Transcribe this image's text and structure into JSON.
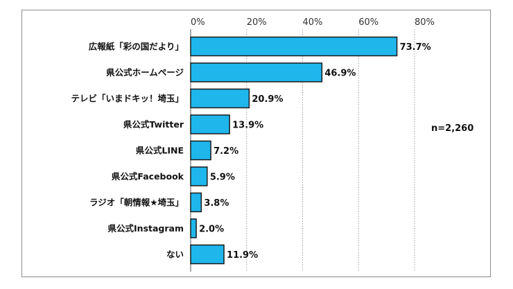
{
  "chart_data": {
    "type": "bar",
    "orientation": "horizontal",
    "categories": [
      "広報紙「彩の国だより」",
      "県公式ホームページ",
      "テレビ「いまドキッ！埼玉」",
      "県公式Twitter",
      "県公式LINE",
      "県公式Facebook",
      "ラジオ「朝情報★埼玉」",
      "県公式Instagram",
      "ない"
    ],
    "values": [
      73.7,
      46.9,
      20.9,
      13.9,
      7.2,
      5.9,
      3.8,
      2.0,
      11.9
    ],
    "value_labels": [
      "73.7%",
      "46.9%",
      "20.9%",
      "13.9%",
      "7.2%",
      "5.9%",
      "3.8%",
      "2.0%",
      "11.9%"
    ],
    "x_ticks": [
      "0%",
      "20%",
      "40%",
      "60%",
      "80%"
    ],
    "xlim": [
      0,
      80
    ],
    "grid": "vertical dotted",
    "bar_color": "#1fb6ec",
    "bar_edge_color": "#1a1a1a",
    "note": "n=2,260"
  }
}
